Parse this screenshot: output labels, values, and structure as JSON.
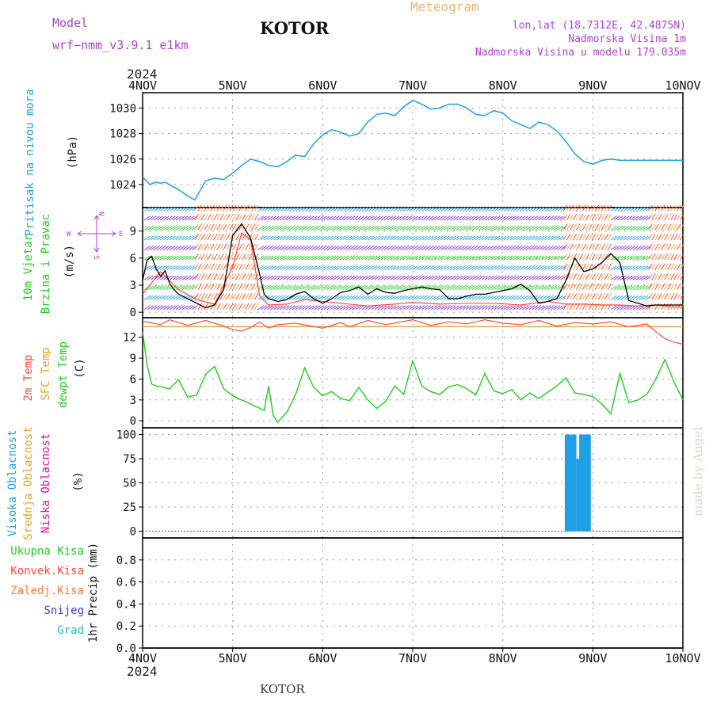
{
  "header": {
    "model_label": "Model",
    "model_name": "wrf−nmm_v3.9.1 e1km",
    "station": "KOTOR",
    "meteogram_label": "Meteogram",
    "lonlat": "lon,lat (18.7312E, 42.4875N)",
    "elevation": "Nadmorska Visina 1m",
    "model_elevation": "Nadmorska Visina u modelu 179.035m",
    "year_top": "2024",
    "year_bottom": "2024",
    "footer_station": "KOTOR",
    "watermark": "made by Angel"
  },
  "colors": {
    "pressure": "#1ea0e6",
    "wind_label": "#22cc22",
    "wind_compass": "#b040d0",
    "temp2m": "#ff4a3a",
    "sfc": "#e8a020",
    "dewpoint": "#22cc22",
    "cloud_high": "#1ea0e6",
    "cloud_mid": "#e8a020",
    "cloud_low": "#e0109a",
    "precip_total": "#22cc22",
    "precip_conv": "#ff4a3a",
    "precip_frozen": "#ff7a30",
    "snow": "#4040e0",
    "graupel": "#22c0b0"
  },
  "chart_data": [
    {
      "type": "line",
      "panel": "pressure",
      "ylabel_lines": [
        "Pritisak na nivou mora"
      ],
      "unit": "(hPa)",
      "yticks": [
        1024,
        1026,
        1028,
        1030
      ],
      "ylim": [
        1022.2,
        1031.2
      ],
      "x_days": [
        "4NOV",
        "5NOV",
        "6NOV",
        "7NOV",
        "8NOV",
        "9NOV",
        "10NOV"
      ],
      "grid": true,
      "series": [
        {
          "x": [
            0,
            0.08,
            0.15,
            0.2,
            0.25,
            0.32,
            0.4,
            0.5,
            0.58,
            0.7,
            0.8,
            0.9,
            1.0,
            1.1,
            1.2,
            1.3,
            1.4,
            1.5,
            1.6,
            1.7,
            1.8,
            1.9,
            2.0,
            2.1,
            2.2,
            2.3,
            2.4,
            2.5,
            2.6,
            2.7,
            2.8,
            2.9,
            3.0,
            3.1,
            3.2,
            3.3,
            3.4,
            3.5,
            3.6,
            3.7,
            3.8,
            3.9,
            4.0,
            4.1,
            4.2,
            4.3,
            4.4,
            4.5,
            4.6,
            4.7,
            4.8,
            4.9,
            5.0,
            5.1,
            5.2,
            5.3,
            5.4,
            5.5,
            5.6,
            5.7,
            5.8,
            5.9,
            6.0
          ],
          "values": [
            1024.6,
            1024.0,
            1024.2,
            1024.1,
            1024.2,
            1023.9,
            1023.6,
            1023.1,
            1022.8,
            1024.3,
            1024.5,
            1024.4,
            1024.9,
            1025.5,
            1026.0,
            1025.8,
            1025.5,
            1025.4,
            1025.8,
            1026.3,
            1026.2,
            1027.2,
            1027.9,
            1028.3,
            1028.1,
            1027.8,
            1028.0,
            1028.9,
            1029.5,
            1029.6,
            1029.4,
            1030.1,
            1030.6,
            1030.3,
            1029.9,
            1030.0,
            1030.3,
            1030.3,
            1030.0,
            1029.5,
            1029.4,
            1029.8,
            1029.6,
            1029.0,
            1028.7,
            1028.4,
            1028.9,
            1028.7,
            1028.2,
            1027.4,
            1026.4,
            1025.8,
            1025.6,
            1025.9,
            1026.0,
            1025.9,
            1025.9,
            1025.9,
            1025.9,
            1025.9,
            1025.9,
            1025.9,
            1025.9
          ]
        }
      ]
    },
    {
      "type": "line",
      "panel": "wind",
      "ylabel_lines": [
        "10m Vjetar",
        "Brzina i Pravac"
      ],
      "unit": "(m/s)",
      "compass": [
        "W",
        "E",
        "N",
        "S"
      ],
      "yticks": [
        0,
        3,
        6,
        9
      ],
      "ylim": [
        -0.6,
        11.6
      ],
      "grid": true,
      "series": [
        {
          "name": "speed",
          "x": [
            0,
            0.05,
            0.1,
            0.15,
            0.2,
            0.25,
            0.3,
            0.35,
            0.4,
            0.5,
            0.6,
            0.7,
            0.8,
            0.9,
            1.0,
            1.1,
            1.2,
            1.3,
            1.35,
            1.4,
            1.5,
            1.6,
            1.7,
            1.8,
            1.9,
            2.0,
            2.1,
            2.2,
            2.3,
            2.4,
            2.5,
            2.6,
            2.7,
            2.8,
            2.9,
            3.0,
            3.1,
            3.2,
            3.3,
            3.4,
            3.5,
            3.6,
            3.7,
            3.8,
            3.9,
            4.0,
            4.1,
            4.2,
            4.3,
            4.4,
            4.5,
            4.6,
            4.7,
            4.8,
            4.9,
            5.0,
            5.1,
            5.2,
            5.3,
            5.4,
            5.5,
            5.6,
            5.7,
            5.8,
            5.9,
            6.0
          ],
          "values": [
            3.5,
            5.8,
            6.2,
            4.8,
            4.0,
            4.6,
            3.2,
            2.5,
            2.0,
            1.5,
            1.0,
            0.5,
            0.8,
            2.5,
            8.5,
            9.8,
            8.2,
            4.2,
            2.0,
            1.5,
            1.2,
            1.4,
            2.0,
            2.3,
            1.5,
            1.0,
            1.5,
            2.2,
            2.4,
            2.8,
            2.0,
            2.6,
            2.2,
            2.1,
            2.4,
            2.6,
            2.8,
            2.6,
            2.5,
            1.5,
            1.5,
            1.8,
            2.0,
            2.0,
            2.2,
            2.4,
            2.6,
            3.1,
            2.4,
            1.0,
            1.2,
            1.5,
            3.5,
            6.0,
            4.5,
            4.8,
            5.5,
            6.5,
            5.5,
            1.3,
            1.0,
            0.7,
            0.8,
            0.8,
            0.8,
            0.8
          ]
        },
        {
          "name": "gust",
          "x": [
            0,
            0.2,
            0.4,
            0.6,
            0.8,
            1.0,
            1.1,
            1.2,
            1.3,
            1.4,
            1.6,
            1.8,
            2.0,
            2.2,
            2.5,
            2.8,
            3.0,
            3.3,
            3.6,
            3.9,
            4.2,
            4.5,
            4.7,
            4.9,
            5.1,
            5.3,
            5.5,
            5.7,
            5.9,
            6.0
          ],
          "values": [
            2.0,
            4.5,
            2.5,
            1.4,
            0.9,
            5.0,
            8.8,
            8.0,
            1.8,
            0.8,
            0.9,
            1.4,
            1.2,
            1.0,
            0.7,
            0.9,
            1.1,
            0.9,
            1.0,
            1.0,
            0.8,
            1.2,
            0.9,
            0.9,
            0.8,
            0.8,
            0.7,
            0.8,
            0.6,
            0.6
          ]
        }
      ]
    },
    {
      "type": "line",
      "panel": "temperature",
      "ylabel_lines": [
        "2m Temp",
        "SFC Temp",
        "dewpt Temp"
      ],
      "unit": "(C)",
      "yticks": [
        0,
        3,
        6,
        9,
        12
      ],
      "ylim": [
        -1.0,
        14.8
      ],
      "grid": true,
      "series": [
        {
          "name": "2m Temp",
          "x": [
            0,
            0.2,
            0.3,
            0.5,
            0.7,
            0.9,
            1.0,
            1.1,
            1.2,
            1.3,
            1.4,
            1.5,
            1.7,
            2.0,
            2.2,
            2.3,
            2.5,
            2.7,
            3.0,
            3.2,
            3.4,
            3.6,
            3.8,
            4.0,
            4.2,
            4.4,
            4.6,
            4.8,
            5.0,
            5.2,
            5.4,
            5.6,
            5.7,
            5.8,
            5.9,
            6.0
          ],
          "values": [
            14.3,
            13.8,
            14.5,
            13.7,
            14.4,
            13.6,
            13.1,
            12.9,
            13.4,
            14.2,
            13.3,
            13.8,
            14.0,
            13.3,
            14.1,
            13.5,
            14.4,
            13.8,
            14.5,
            13.7,
            14.2,
            13.9,
            14.5,
            14.0,
            13.8,
            14.4,
            13.6,
            14.1,
            13.9,
            14.2,
            13.5,
            13.9,
            12.8,
            11.8,
            11.3,
            11.0
          ]
        },
        {
          "name": "SFC Temp",
          "x": [
            0,
            6.0
          ],
          "values": [
            13.5,
            13.5
          ]
        },
        {
          "name": "dewpt Temp",
          "x": [
            0,
            0.05,
            0.1,
            0.15,
            0.2,
            0.3,
            0.4,
            0.5,
            0.6,
            0.7,
            0.8,
            0.9,
            1.0,
            1.1,
            1.2,
            1.3,
            1.35,
            1.4,
            1.45,
            1.5,
            1.6,
            1.7,
            1.8,
            1.9,
            2.0,
            2.1,
            2.2,
            2.3,
            2.4,
            2.5,
            2.6,
            2.7,
            2.8,
            2.9,
            3.0,
            3.1,
            3.2,
            3.3,
            3.4,
            3.5,
            3.6,
            3.7,
            3.8,
            3.9,
            4.0,
            4.1,
            4.2,
            4.3,
            4.4,
            4.5,
            4.6,
            4.7,
            4.8,
            4.9,
            5.0,
            5.1,
            5.2,
            5.3,
            5.4,
            5.5,
            5.6,
            5.7,
            5.8,
            5.9,
            6.0
          ],
          "values": [
            12.8,
            8.0,
            5.3,
            5.0,
            4.9,
            4.6,
            5.9,
            3.4,
            3.7,
            6.7,
            7.8,
            4.6,
            3.6,
            3.0,
            2.4,
            1.8,
            1.5,
            5.0,
            0.8,
            -0.2,
            1.2,
            3.8,
            7.6,
            4.8,
            3.6,
            4.2,
            3.2,
            2.9,
            4.8,
            3.0,
            1.8,
            2.8,
            5.0,
            3.8,
            8.6,
            5.0,
            4.2,
            3.8,
            4.9,
            5.2,
            4.6,
            3.7,
            6.8,
            4.3,
            3.9,
            4.5,
            3.0,
            4.0,
            3.2,
            4.1,
            5.0,
            6.2,
            4.0,
            3.8,
            3.5,
            2.4,
            1.0,
            6.8,
            2.6,
            3.0,
            3.8,
            6.0,
            8.8,
            5.6,
            3.0
          ]
        }
      ]
    },
    {
      "type": "bar",
      "panel": "clouds",
      "ylabel_lines": [
        "Visoka Oblacnost",
        "Srednja Oblacnost",
        "Niska Oblacnost"
      ],
      "unit": "(%)",
      "yticks": [
        0,
        25,
        50,
        75,
        100
      ],
      "ylim": [
        -7,
        107
      ],
      "grid": true,
      "series": [
        {
          "name": "Visoka Oblacnost",
          "x": [
            4.71,
            4.74,
            4.77,
            4.8,
            4.84,
            4.87,
            4.9,
            4.93,
            4.96
          ],
          "values": [
            100,
            100,
            100,
            100,
            75,
            100,
            100,
            100,
            100
          ]
        }
      ]
    },
    {
      "type": "bar",
      "panel": "precip",
      "ylabel_lines": [
        "1hr Precip (mm)"
      ],
      "legend": [
        "Ukupna Kisa",
        "Konvek.Kisa",
        "Zaledj.Kisa",
        "Snijeg",
        "Grad"
      ],
      "yticks": [
        0,
        0.2,
        0.4,
        0.6,
        0.8
      ],
      "ylim": [
        0,
        1.0
      ],
      "grid": true,
      "series": []
    }
  ]
}
